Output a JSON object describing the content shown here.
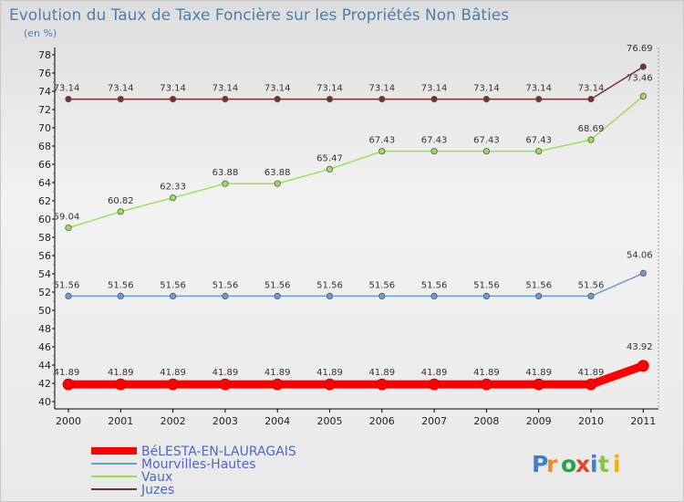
{
  "chart_data": {
    "type": "line",
    "title": "Evolution du Taux de Taxe Foncière sur les Propriétés Non Bâties",
    "ylabel": "(en %)",
    "xlabel": "",
    "x": [
      "2000",
      "2001",
      "2002",
      "2003",
      "2004",
      "2005",
      "2006",
      "2007",
      "2008",
      "2009",
      "2010",
      "2011"
    ],
    "ylim": [
      40,
      78
    ],
    "yticks": [
      40,
      42,
      44,
      46,
      48,
      50,
      52,
      54,
      56,
      58,
      60,
      62,
      64,
      66,
      68,
      70,
      72,
      74,
      76,
      78
    ],
    "grid": false,
    "legend_position": "bottom-left",
    "series": [
      {
        "name": "BéLESTA-EN-LAURAGAIS",
        "color": "#ff0000",
        "values": [
          41.89,
          41.89,
          41.89,
          41.89,
          41.89,
          41.89,
          41.89,
          41.89,
          41.89,
          41.89,
          41.89,
          43.92
        ],
        "labels": [
          "41.89",
          "41.89",
          "41.89",
          "41.89",
          "41.89",
          "41.89",
          "41.89",
          "41.89",
          "41.89",
          "41.89",
          "41.89",
          "43.92"
        ]
      },
      {
        "name": "Mourvilles-Hautes",
        "color": "#6a9ed2",
        "values": [
          51.56,
          51.56,
          51.56,
          51.56,
          51.56,
          51.56,
          51.56,
          51.56,
          51.56,
          51.56,
          51.56,
          54.06
        ],
        "labels": [
          "51.56",
          "51.56",
          "51.56",
          "51.56",
          "51.56",
          "51.56",
          "51.56",
          "51.56",
          "51.56",
          "51.56",
          "51.56",
          "54.06"
        ]
      },
      {
        "name": "Vaux",
        "color": "#99e05a",
        "values": [
          59.04,
          60.82,
          62.33,
          63.88,
          63.88,
          65.47,
          67.43,
          67.43,
          67.43,
          67.43,
          68.69,
          73.46
        ],
        "labels": [
          "59.04",
          "60.82",
          "62.33",
          "63.88",
          "63.88",
          "65.47",
          "67.43",
          "67.43",
          "67.43",
          "67.43",
          "68.69",
          "73.46"
        ]
      },
      {
        "name": "Juzes",
        "color": "#7a2f2f",
        "values": [
          73.14,
          73.14,
          73.14,
          73.14,
          73.14,
          73.14,
          73.14,
          73.14,
          73.14,
          73.14,
          73.14,
          76.69
        ],
        "labels": [
          "73.14",
          "73.14",
          "73.14",
          "73.14",
          "73.14",
          "73.14",
          "73.14",
          "73.14",
          "73.14",
          "73.14",
          "73.14",
          "76.69"
        ]
      }
    ]
  },
  "logo": {
    "text": "Proxiti",
    "colors": [
      "#3b7fd6",
      "#f08a1e",
      "#2aa24a",
      "#e04a2a",
      "#3b7fd6",
      "#8bc34a",
      "#f0b400"
    ]
  }
}
